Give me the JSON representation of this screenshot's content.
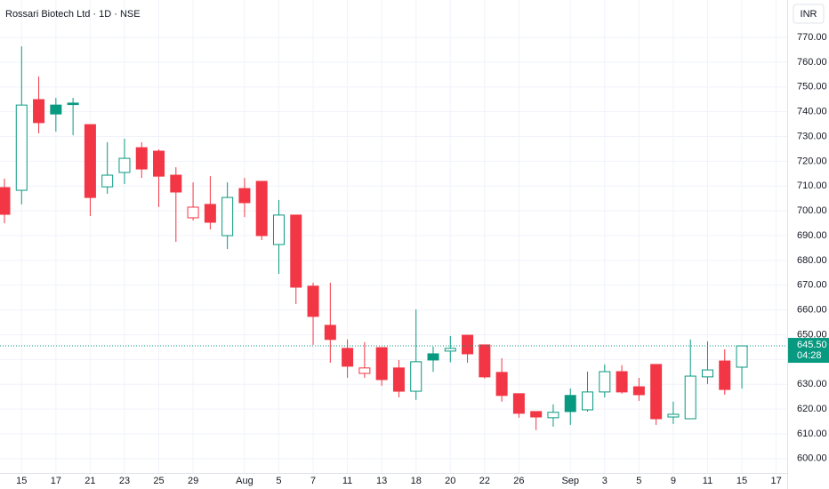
{
  "chart_data": {
    "type": "candlestick",
    "title": "Rossari Biotech Ltd · 1D · NSE",
    "currency": "INR",
    "categories": [
      null,
      "15",
      null,
      "17",
      null,
      "21",
      null,
      "23",
      null,
      "25",
      null,
      "29",
      null,
      null,
      "Aug",
      null,
      "5",
      null,
      "7",
      null,
      "11",
      null,
      "13",
      null,
      "18",
      null,
      "20",
      null,
      "22",
      null,
      "26",
      null,
      null,
      "Sep",
      null,
      "3",
      null,
      "5",
      null,
      "9",
      null,
      "11",
      null,
      "15",
      null,
      "17"
    ],
    "open": [
      709.4,
      708.3,
      744.9,
      742.7,
      743.5,
      734.8,
      709.7,
      715.5,
      725.5,
      724.1,
      714.4,
      697.2,
      702.6,
      690.0,
      709.0,
      711.9,
      686.4,
      698.3,
      669.6,
      653.8,
      644.5,
      634.4,
      644.8,
      636.6,
      627.2,
      642.3,
      643.4,
      649.8,
      645.9,
      634.8,
      626.2,
      619.0,
      616.5,
      625.5,
      619.7,
      626.9,
      635.1,
      629.0,
      638.0,
      616.8,
      616.1,
      633.0,
      639.4,
      636.9,
      null,
      null
    ],
    "high": [
      713.0,
      766.4,
      754.2,
      745.6,
      745.6,
      734.8,
      727.7,
      729.1,
      727.7,
      724.8,
      717.6,
      711.5,
      714.0,
      711.5,
      713.3,
      711.9,
      704.4,
      698.3,
      671.0,
      671.0,
      648.1,
      647.0,
      644.8,
      639.8,
      660.2,
      645.2,
      649.5,
      649.8,
      645.9,
      640.5,
      626.2,
      619.0,
      621.9,
      628.3,
      635.1,
      638.0,
      637.7,
      632.6,
      638.0,
      623.0,
      648.1,
      647.3,
      644.1,
      645.5,
      null,
      null
    ],
    "low": [
      695.0,
      702.6,
      731.3,
      732.0,
      730.5,
      697.9,
      706.9,
      710.8,
      713.3,
      701.5,
      687.5,
      696.1,
      692.5,
      684.6,
      697.5,
      688.2,
      674.6,
      662.4,
      645.9,
      638.7,
      632.6,
      632.6,
      629.4,
      624.7,
      623.7,
      635.0,
      638.9,
      638.7,
      632.3,
      623.0,
      616.5,
      611.5,
      612.9,
      613.6,
      619.0,
      624.7,
      626.2,
      623.3,
      613.6,
      614.0,
      616.1,
      630.1,
      625.8,
      628.3,
      null,
      null
    ],
    "close": [
      698.6,
      742.7,
      735.6,
      739.1,
      742.9,
      705.4,
      714.4,
      721.2,
      716.9,
      714.0,
      707.6,
      701.5,
      695.4,
      705.4,
      703.3,
      690.0,
      698.3,
      669.2,
      657.4,
      648.1,
      637.3,
      636.6,
      631.9,
      627.2,
      639.1,
      639.8,
      644.5,
      642.3,
      633.0,
      625.5,
      618.3,
      616.8,
      618.7,
      619.0,
      626.9,
      635.1,
      626.9,
      625.8,
      616.1,
      617.9,
      633.3,
      635.8,
      627.9,
      645.5,
      null,
      null
    ],
    "up_color": "#089981",
    "down_color": "#f23645",
    "ylim": [
      594.2,
      785.1
    ],
    "yticks": [
      {
        "value": 600,
        "label": "600.00"
      },
      {
        "value": 610,
        "label": "610.00"
      },
      {
        "value": 620,
        "label": "620.00"
      },
      {
        "value": 630,
        "label": "630.00"
      },
      {
        "value": 640,
        "label": "640.00"
      },
      {
        "value": 650,
        "label": "650.00"
      },
      {
        "value": 660,
        "label": "660.00"
      },
      {
        "value": 670,
        "label": "670.00"
      },
      {
        "value": 680,
        "label": "680.00"
      },
      {
        "value": 690,
        "label": "690.00"
      },
      {
        "value": 700,
        "label": "700.00"
      },
      {
        "value": 710,
        "label": "710.00"
      },
      {
        "value": 720,
        "label": "720.00"
      },
      {
        "value": 730,
        "label": "730.00"
      },
      {
        "value": 740,
        "label": "740.00"
      },
      {
        "value": 750,
        "label": "750.00"
      },
      {
        "value": 760,
        "label": "760.00"
      },
      {
        "value": 770,
        "label": "770.00"
      }
    ],
    "grid": true,
    "last_price": {
      "value": 645.5,
      "label": "645.50"
    },
    "countdown": "04:28"
  }
}
